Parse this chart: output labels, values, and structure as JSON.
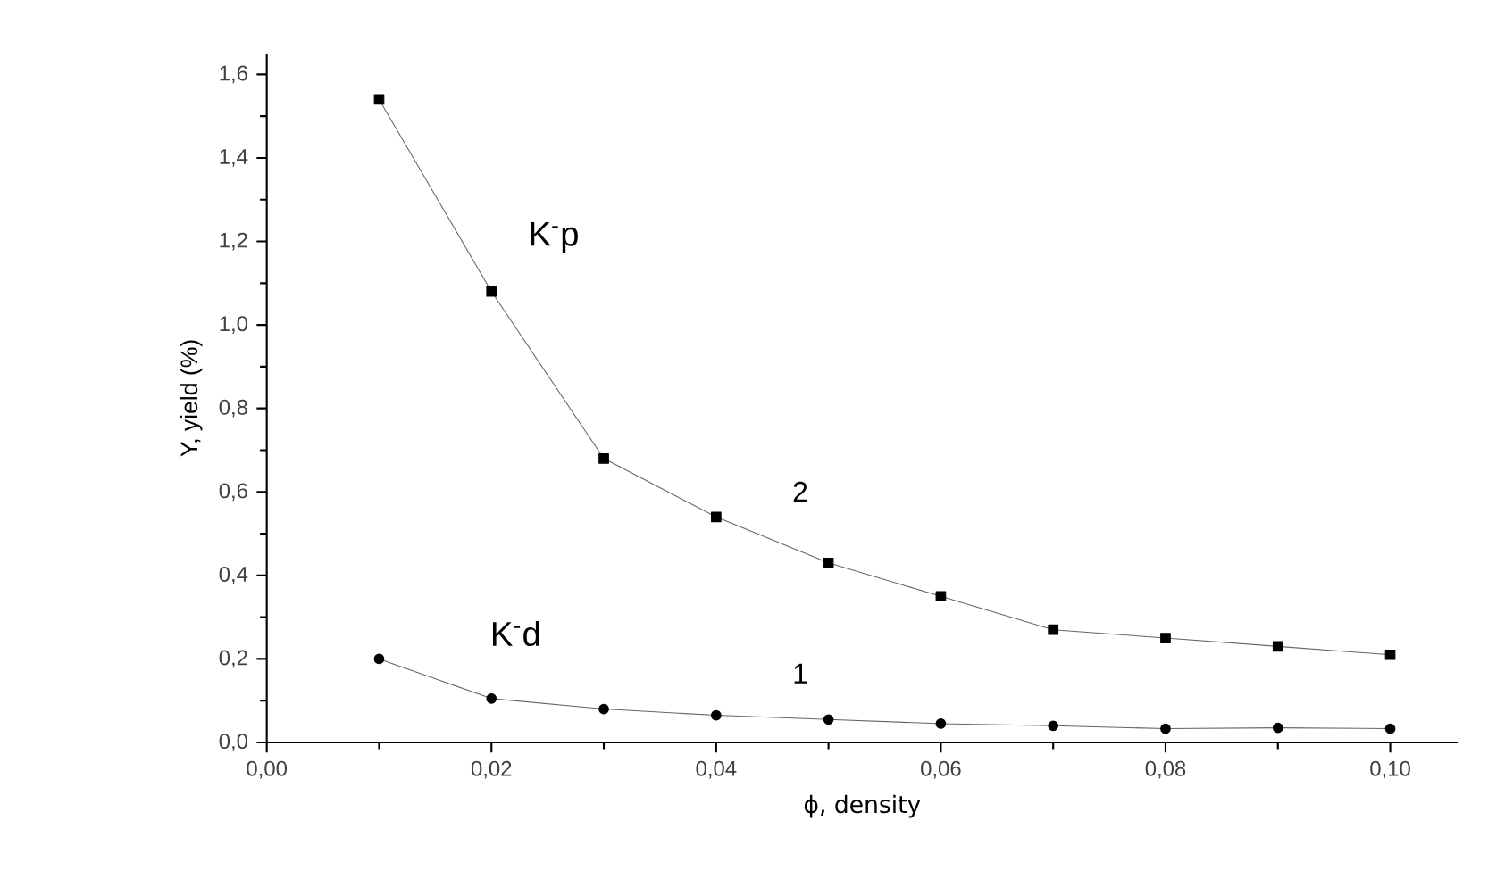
{
  "chart_data": {
    "type": "line",
    "xlabel": "ϕ, density",
    "ylabel": "Y, yield (%)",
    "x": [
      0.01,
      0.02,
      0.03,
      0.04,
      0.05,
      0.06,
      0.07,
      0.08,
      0.09,
      0.1
    ],
    "series": [
      {
        "color": "#000000",
        "marker": "square",
        "values": [
          1.54,
          1.08,
          0.68,
          0.54,
          0.43,
          0.35,
          0.27,
          0.25,
          0.23,
          0.21
        ]
      },
      {
        "color": "#000000",
        "marker": "circle",
        "values": [
          0.2,
          0.105,
          0.08,
          0.065,
          0.055,
          0.045,
          0.04,
          0.033,
          0.035,
          0.033
        ]
      }
    ],
    "xlim": [
      0,
      0.106
    ],
    "ylim": [
      0,
      1.65
    ],
    "xticks": [
      {
        "value": 0,
        "label": "0,00"
      },
      {
        "value": 0.02,
        "label": "0,02"
      },
      {
        "value": 0.04,
        "label": "0,04"
      },
      {
        "value": 0.06,
        "label": "0,06"
      },
      {
        "value": 0.08,
        "label": "0,08"
      },
      {
        "value": 0.1,
        "label": "0,10"
      }
    ],
    "yticks": [
      {
        "value": 0,
        "label": "0,0"
      },
      {
        "value": 0.2,
        "label": "0,2"
      },
      {
        "value": 0.4,
        "label": "0,4"
      },
      {
        "value": 0.6,
        "label": "0,6"
      },
      {
        "value": 0.8,
        "label": "0,8"
      },
      {
        "value": 1.0,
        "label": "1,0"
      },
      {
        "value": 1.2,
        "label": "1,2"
      },
      {
        "value": 1.4,
        "label": "1,4"
      },
      {
        "value": 1.6,
        "label": "1,6"
      }
    ],
    "annotations": [
      "K$^{-}$p",
      "2",
      "K$^{-}$d",
      "1"
    ],
    "line_style": "solid"
  }
}
